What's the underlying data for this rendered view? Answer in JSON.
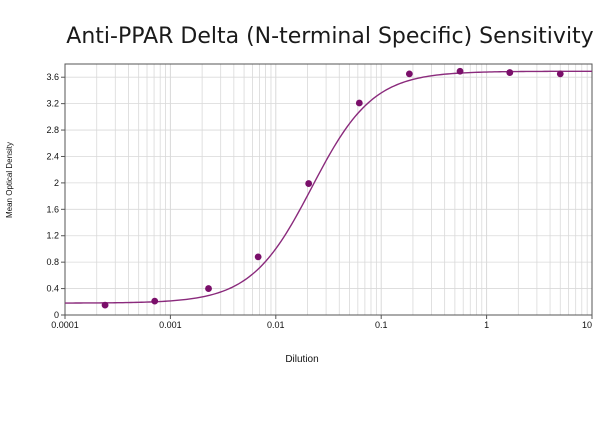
{
  "chart_data": {
    "type": "scatter",
    "title": "Anti-PPAR Delta (N-terminal Specific) Sensitivity",
    "xlabel": "Dilution",
    "ylabel": "Mean Optical Density",
    "xscale": "log",
    "xlim": [
      0.0001,
      10
    ],
    "ylim": [
      0,
      3.8
    ],
    "grid": true,
    "x_ticks": [
      {
        "value": 0.0001,
        "label": "0.0001"
      },
      {
        "value": 0.001,
        "label": "0.001"
      },
      {
        "value": 0.01,
        "label": "0.01"
      },
      {
        "value": 0.1,
        "label": "0.1"
      },
      {
        "value": 1,
        "label": "1"
      },
      {
        "value": 10,
        "label": "10"
      }
    ],
    "y_ticks": [
      {
        "value": 0,
        "label": "0"
      },
      {
        "value": 0.4,
        "label": "0.4"
      },
      {
        "value": 0.8,
        "label": "0.8"
      },
      {
        "value": 1.2,
        "label": "1.2"
      },
      {
        "value": 1.6,
        "label": "1.6"
      },
      {
        "value": 2,
        "label": "2"
      },
      {
        "value": 2.4,
        "label": "2.4"
      },
      {
        "value": 2.8,
        "label": "2.8"
      },
      {
        "value": 3.2,
        "label": "3.2"
      },
      {
        "value": 3.6,
        "label": "3.6"
      }
    ],
    "points": [
      {
        "x": 0.00024,
        "y": 0.15
      },
      {
        "x": 0.00071,
        "y": 0.21
      },
      {
        "x": 0.0023,
        "y": 0.4
      },
      {
        "x": 0.0068,
        "y": 0.88
      },
      {
        "x": 0.0205,
        "y": 1.99
      },
      {
        "x": 0.062,
        "y": 3.21
      },
      {
        "x": 0.185,
        "y": 3.65
      },
      {
        "x": 0.56,
        "y": 3.69
      },
      {
        "x": 1.66,
        "y": 3.67
      },
      {
        "x": 5.0,
        "y": 3.65
      }
    ],
    "colors": {
      "points": "#7a0f6a",
      "curve": "#8a2a7c",
      "grid": "#d9d9d9",
      "axis": "#555555"
    }
  }
}
